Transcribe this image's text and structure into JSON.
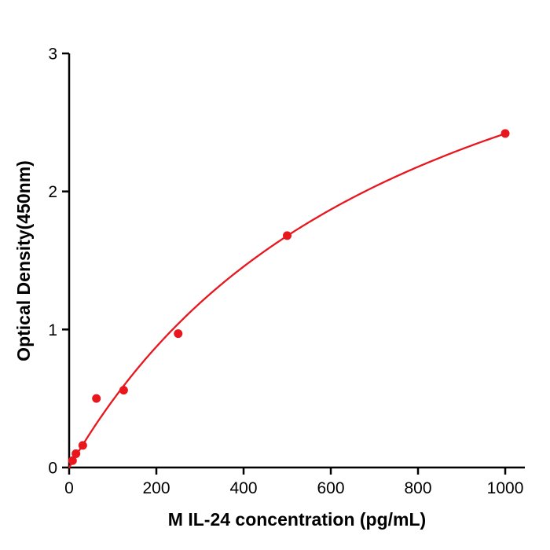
{
  "chart_data": {
    "type": "scatter",
    "title": "",
    "xlabel": "M  IL-24 concentration (pg/mL)",
    "ylabel": "Optical Density(450nm)",
    "xlim": [
      0,
      1045
    ],
    "ylim": [
      0,
      3
    ],
    "xticks": [
      0,
      200,
      400,
      600,
      800,
      1000
    ],
    "yticks": [
      0,
      1,
      2,
      3
    ],
    "grid": false,
    "legend": "none",
    "points": [
      [
        7.8,
        0.05
      ],
      [
        15.6,
        0.1
      ],
      [
        31.25,
        0.16
      ],
      [
        62.5,
        0.5
      ],
      [
        125,
        0.56
      ],
      [
        250,
        0.97
      ],
      [
        500,
        1.68
      ],
      [
        1000,
        2.42
      ]
    ],
    "curve": {
      "model": "saturation: y = a*x/(b+x)",
      "a": 4.33,
      "b": 790,
      "x_start": 0,
      "x_end": 1000
    },
    "point_color": "#e8161d",
    "line_color": "#e8161d",
    "axis_color": "#000000"
  }
}
